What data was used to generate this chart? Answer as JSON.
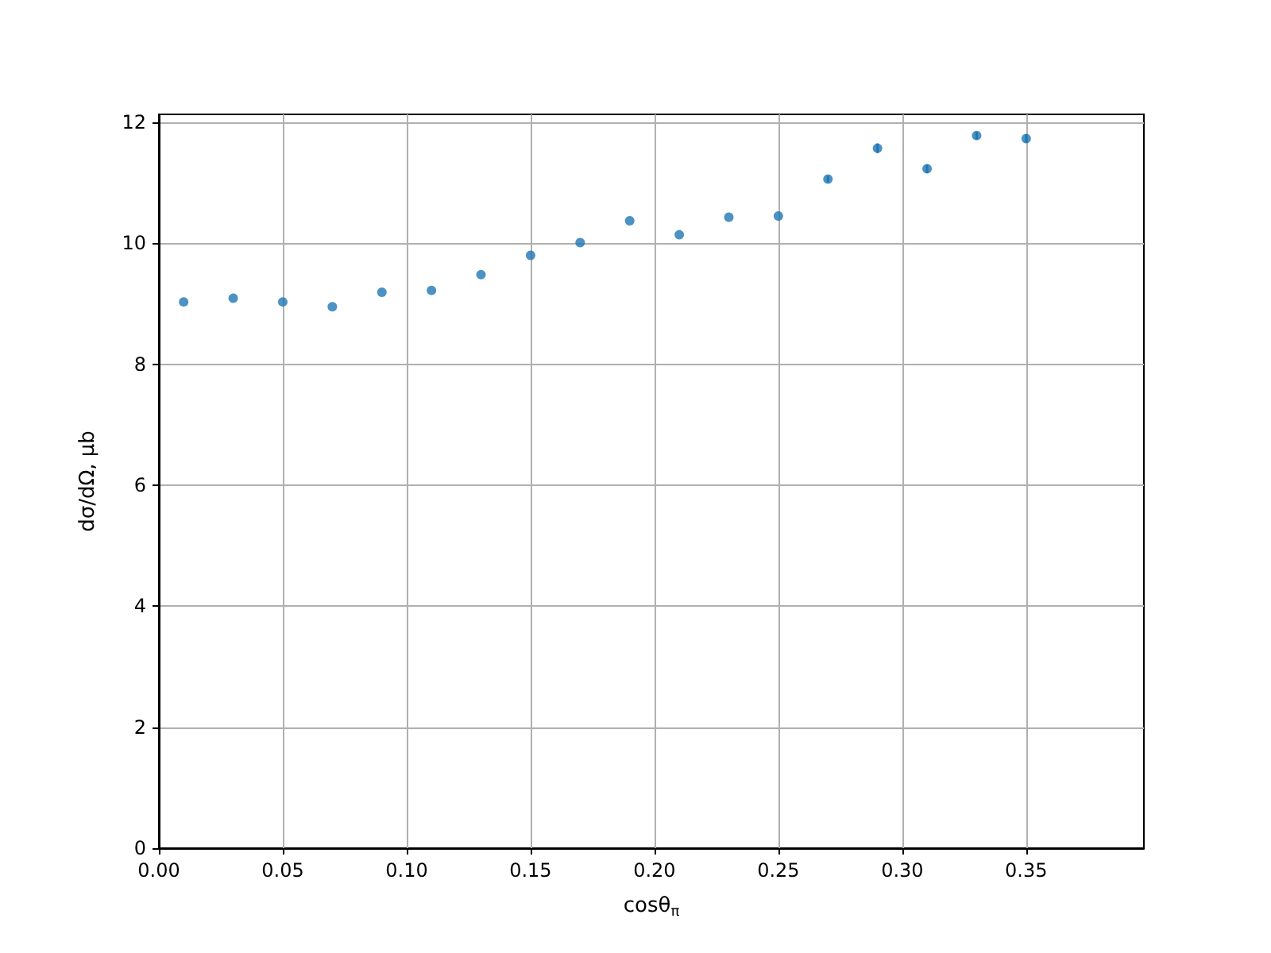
{
  "chart_data": {
    "type": "scatter",
    "xlabel": "cosθ$_{π}$",
    "ylabel": "dσ/dΩ, μb",
    "x": [
      0.01,
      0.03,
      0.05,
      0.07,
      0.09,
      0.11,
      0.13,
      0.15,
      0.17,
      0.19,
      0.21,
      0.23,
      0.25,
      0.27,
      0.29,
      0.31,
      0.33,
      0.35
    ],
    "values": [
      9.03,
      9.09,
      9.03,
      8.95,
      9.19,
      9.22,
      9.48,
      9.8,
      10.01,
      10.37,
      10.14,
      10.43,
      10.45,
      11.06,
      11.57,
      11.23,
      11.78,
      11.73
    ],
    "errors": [
      null,
      null,
      null,
      null,
      null,
      null,
      null,
      null,
      null,
      null,
      null,
      null,
      null,
      0.05,
      0.08,
      0.07,
      0.06,
      0.07
    ],
    "color": "#1f77b4",
    "marker": "circle",
    "grid": true,
    "xlim": [
      0,
      0.3975
    ],
    "xticks": [
      {
        "value": 0,
        "label": "0.00"
      },
      {
        "value": 0.05,
        "label": "0.05"
      },
      {
        "value": 0.1,
        "label": "0.10"
      },
      {
        "value": 0.15,
        "label": "0.15"
      },
      {
        "value": 0.2,
        "label": "0.20"
      },
      {
        "value": 0.25,
        "label": "0.25"
      },
      {
        "value": 0.3,
        "label": "0.30"
      },
      {
        "value": 0.35,
        "label": "0.35"
      }
    ],
    "ylim": [
      0,
      12.13
    ],
    "yticks": [
      0,
      2,
      4,
      6,
      8,
      10,
      12
    ]
  }
}
